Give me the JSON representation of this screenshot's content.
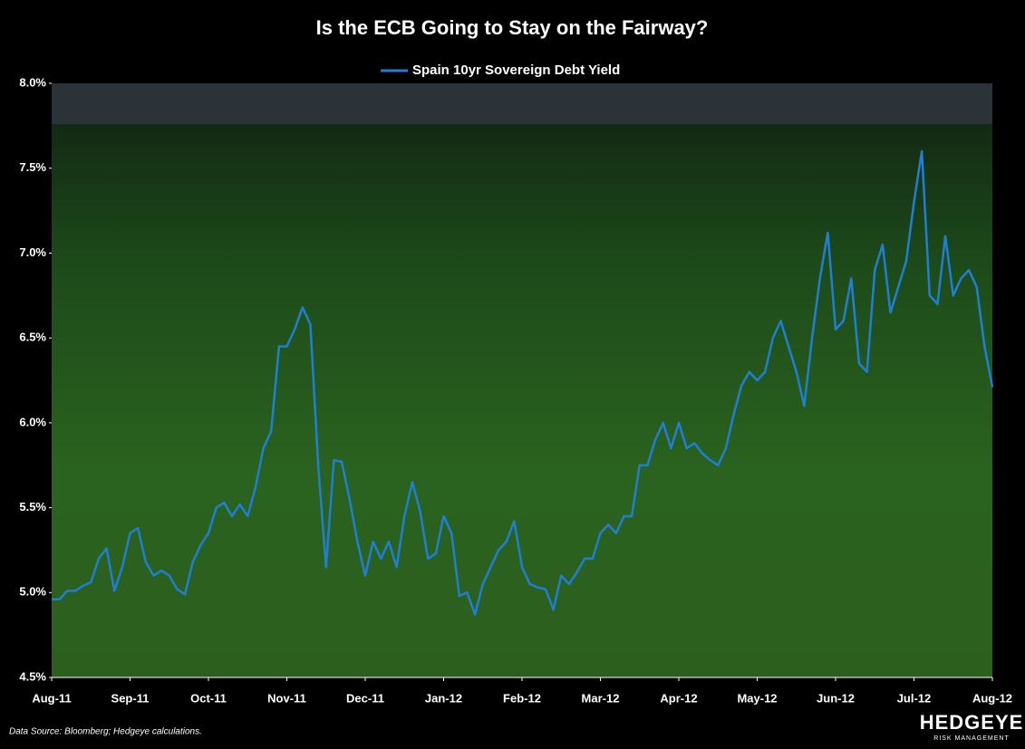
{
  "chart_data": {
    "type": "line",
    "title": "Is the ECB Going to Stay on the Fairway?",
    "source": "Data Source:  Bloomberg; Hedgeye calculations.",
    "logo": "HEDGEYE",
    "logo_sub": "RISK MANAGEMENT",
    "categories": [
      "Aug-11",
      null,
      null,
      null,
      null,
      null,
      null,
      null,
      null,
      null,
      "Sep-11",
      null,
      null,
      null,
      null,
      null,
      null,
      null,
      null,
      null,
      "Oct-11",
      null,
      null,
      null,
      null,
      null,
      null,
      null,
      null,
      null,
      "Nov-11",
      null,
      null,
      null,
      null,
      null,
      null,
      null,
      null,
      null,
      "Dec-11",
      null,
      null,
      null,
      null,
      null,
      null,
      null,
      null,
      null,
      "Jan-12",
      null,
      null,
      null,
      null,
      null,
      null,
      null,
      null,
      null,
      "Feb-12",
      null,
      null,
      null,
      null,
      null,
      null,
      null,
      null,
      null,
      "Mar-12",
      null,
      null,
      null,
      null,
      null,
      null,
      null,
      null,
      null,
      "Apr-12",
      null,
      null,
      null,
      null,
      null,
      null,
      null,
      null,
      null,
      "May-12",
      null,
      null,
      null,
      null,
      null,
      null,
      null,
      null,
      null,
      "Jun-12",
      null,
      null,
      null,
      null,
      null,
      null,
      null,
      null,
      null,
      "Jul-12",
      null,
      null,
      null,
      null,
      null,
      null,
      null,
      null,
      null,
      "Aug-12"
    ],
    "series": [
      {
        "name": "Spain 10yr Sovereign Debt Yield",
        "color": "#1f7fd4",
        "values": [
          4.96,
          4.96,
          5.01,
          5.01,
          5.04,
          5.06,
          5.2,
          5.26,
          5.01,
          5.15,
          5.35,
          5.38,
          5.18,
          5.1,
          5.13,
          5.1,
          5.02,
          4.99,
          5.18,
          5.28,
          5.35,
          5.5,
          5.53,
          5.45,
          5.52,
          5.45,
          5.62,
          5.85,
          5.95,
          6.45,
          6.45,
          6.55,
          6.68,
          6.58,
          5.75,
          5.15,
          5.78,
          5.77,
          5.55,
          5.3,
          5.1,
          5.3,
          5.2,
          5.3,
          5.15,
          5.45,
          5.65,
          5.48,
          5.2,
          5.23,
          5.45,
          5.35,
          4.98,
          5.0,
          4.87,
          5.05,
          5.15,
          5.25,
          5.3,
          5.42,
          5.15,
          5.05,
          5.03,
          5.02,
          4.9,
          5.1,
          5.05,
          5.12,
          5.2,
          5.2,
          5.35,
          5.4,
          5.35,
          5.45,
          5.45,
          5.75,
          5.75,
          5.9,
          6.0,
          5.85,
          6.0,
          5.85,
          5.88,
          5.82,
          5.78,
          5.75,
          5.85,
          6.05,
          6.22,
          6.3,
          6.25,
          6.3,
          6.5,
          6.6,
          6.45,
          6.3,
          6.1,
          6.5,
          6.85,
          7.12,
          6.55,
          6.6,
          6.85,
          6.35,
          6.3,
          6.9,
          7.05,
          6.65,
          6.8,
          6.95,
          7.3,
          7.6,
          6.75,
          6.7,
          7.1,
          6.75,
          6.85,
          6.9,
          6.8,
          6.45,
          6.21
        ]
      }
    ],
    "ylim": [
      4.5,
      8.0
    ],
    "yticks": [
      {
        "value": 4.5,
        "label": "4.5%"
      },
      {
        "value": 5.0,
        "label": "5.0%"
      },
      {
        "value": 5.5,
        "label": "5.5%"
      },
      {
        "value": 6.0,
        "label": "6.0%"
      },
      {
        "value": 6.5,
        "label": "6.5%"
      },
      {
        "value": 7.0,
        "label": "7.0%"
      },
      {
        "value": 7.5,
        "label": "7.5%"
      },
      {
        "value": 8.0,
        "label": "8.0%"
      }
    ],
    "legend": "top"
  }
}
